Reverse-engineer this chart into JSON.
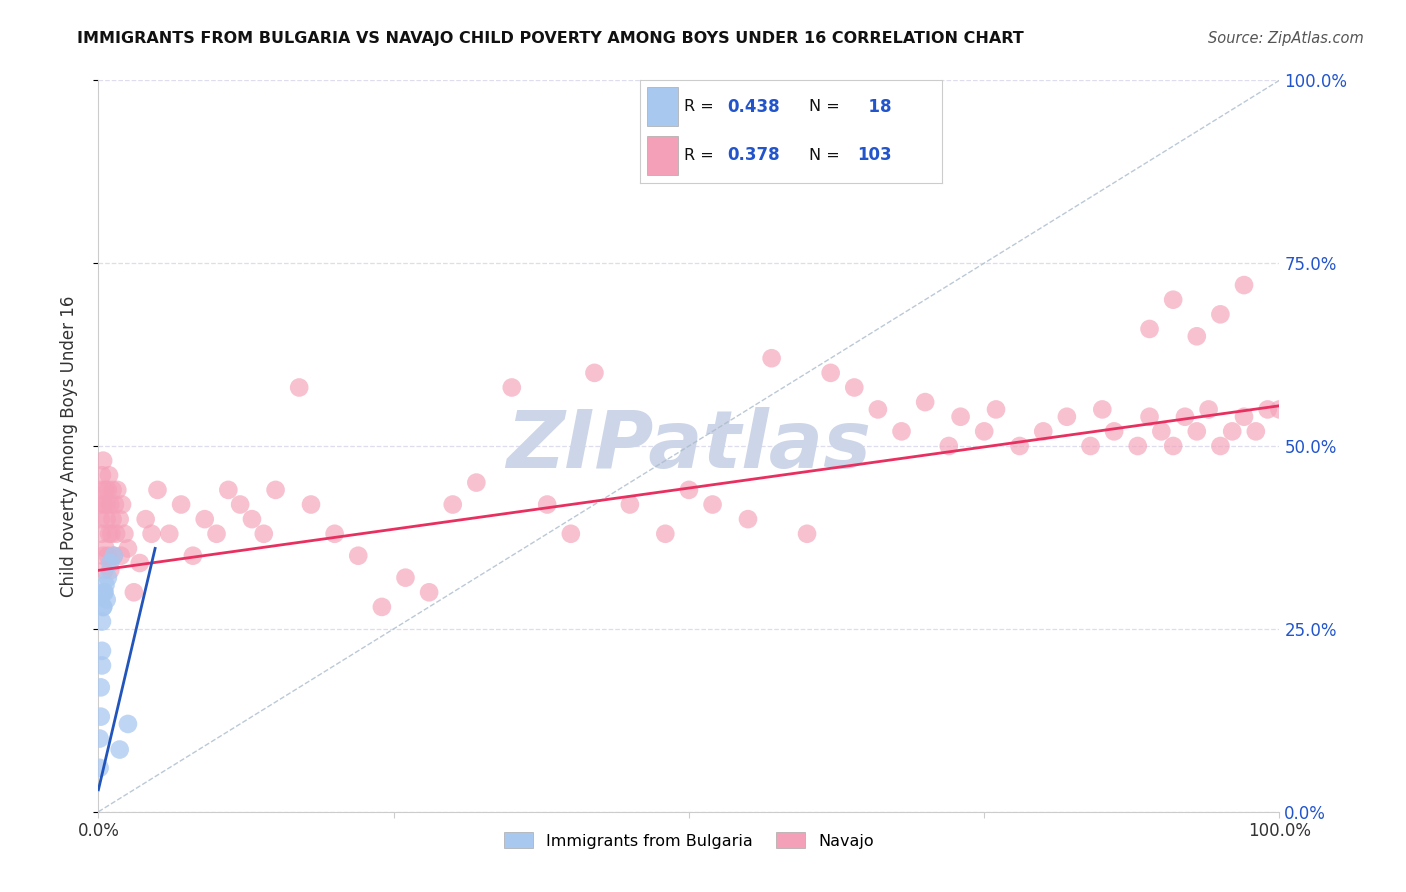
{
  "title": "IMMIGRANTS FROM BULGARIA VS NAVAJO CHILD POVERTY AMONG BOYS UNDER 16 CORRELATION CHART",
  "source": "Source: ZipAtlas.com",
  "ylabel": "Child Poverty Among Boys Under 16",
  "xlim": [
    0.0,
    1.0
  ],
  "ylim": [
    0.0,
    1.0
  ],
  "ytick_labels": [
    "0.0%",
    "25.0%",
    "50.0%",
    "75.0%",
    "100.0%"
  ],
  "ytick_values": [
    0.0,
    0.25,
    0.5,
    0.75,
    1.0
  ],
  "xtick_values": [
    0.0,
    0.25,
    0.5,
    0.75,
    1.0
  ],
  "xtick_labels": [
    "0.0%",
    "",
    "",
    "",
    "100.0%"
  ],
  "blue_r": 0.438,
  "blue_n": 18,
  "pink_r": 0.378,
  "pink_n": 103,
  "blue_color": "#a8c8f0",
  "pink_color": "#f4a0b8",
  "blue_line_color": "#2255bb",
  "pink_line_color": "#e83060",
  "diagonal_color": "#aabbcc",
  "watermark_text": "ZIPatlas",
  "watermark_color": "#cdd5e8",
  "legend_r_color": "#2255cc",
  "background_color": "#ffffff",
  "grid_color": "#ddddee",
  "title_color": "#111111",
  "source_color": "#555555",
  "pink_line_x0": 0.0,
  "pink_line_y0": 0.33,
  "pink_line_x1": 1.0,
  "pink_line_y1": 0.555,
  "blue_line_x0": 0.0,
  "blue_line_y0": 0.03,
  "blue_line_x1": 0.048,
  "blue_line_y1": 0.36
}
